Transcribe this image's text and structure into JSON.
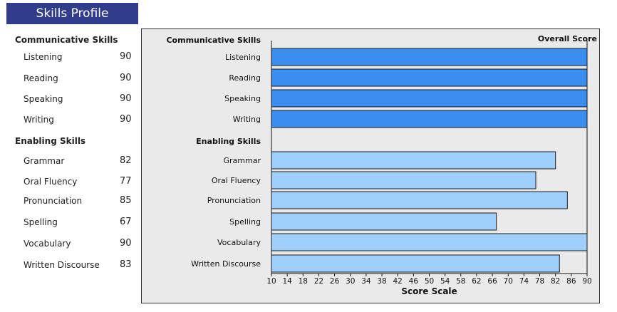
{
  "header": {
    "title": "Skills Profile"
  },
  "profile": {
    "groups": [
      {
        "name": "Communicative Skills",
        "skills": [
          {
            "name": "Listening",
            "score": "90"
          },
          {
            "name": "Reading",
            "score": "90"
          },
          {
            "name": "Speaking",
            "score": "90"
          },
          {
            "name": "Writing",
            "score": "90"
          }
        ]
      },
      {
        "name": "Enabling Skills",
        "skills": [
          {
            "name": "Grammar",
            "score": "82"
          },
          {
            "name": "Oral Fluency",
            "score": "77"
          },
          {
            "name": "Pronunciation",
            "score": "85"
          },
          {
            "name": "Spelling",
            "score": "67"
          },
          {
            "name": "Vocabulary",
            "score": "90"
          },
          {
            "name": "Written Discourse",
            "score": "83"
          }
        ]
      }
    ]
  },
  "chart_data": {
    "type": "bar",
    "orientation": "horizontal",
    "title": "Overall Score",
    "xlabel": "Score Scale",
    "xlim": [
      10,
      90
    ],
    "xticks": [
      10,
      14,
      18,
      22,
      26,
      30,
      34,
      38,
      42,
      46,
      50,
      54,
      58,
      62,
      66,
      70,
      74,
      78,
      82,
      86,
      90
    ],
    "groups": [
      {
        "label": "Communicative Skills",
        "color": "#3a8ef0",
        "categories": [
          "Listening",
          "Reading",
          "Speaking",
          "Writing"
        ],
        "values": [
          90,
          90,
          90,
          90
        ]
      },
      {
        "label": "Enabling Skills",
        "color": "#9fd0fb",
        "categories": [
          "Grammar",
          "Oral Fluency",
          "Pronunciation",
          "Spelling",
          "Vocabulary",
          "Written Discourse"
        ],
        "values": [
          82,
          77,
          85,
          67,
          90,
          83
        ]
      }
    ],
    "grid": false
  }
}
